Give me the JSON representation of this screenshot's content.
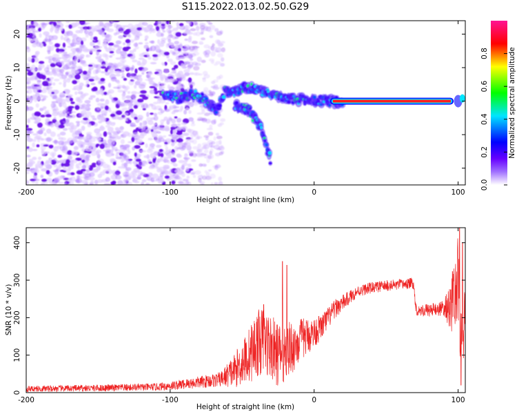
{
  "page": {
    "title": "S115.2022.013.02.50.G29"
  },
  "chart_data": [
    {
      "type": "heatmap",
      "title": "S115.2022.013.02.50.G29",
      "xlabel": "Height of straight line (km)",
      "ylabel": "Frequency (Hz)",
      "xlim": [
        -200,
        105
      ],
      "ylim": [
        -25,
        24
      ],
      "xticks": [
        -200,
        -100,
        0,
        100
      ],
      "yticks": [
        -20,
        -10,
        0,
        10,
        20
      ],
      "colorbar": {
        "label": "Normalized spectral amplitude",
        "range": [
          0,
          1
        ],
        "ticks": [
          "0.0",
          "0.2",
          "0.4",
          "0.6",
          "0.8"
        ],
        "colors": [
          "#ffffff",
          "#8c00ff",
          "#0000ff",
          "#00e5ff",
          "#00ff00",
          "#ffff00",
          "#ff0000",
          "#ff1493"
        ]
      },
      "features": [
        {
          "name": "noise",
          "x_range": [
            -200,
            -85
          ],
          "y_range": [
            -25,
            24
          ],
          "amplitude": 0.15
        },
        {
          "name": "sparse-noise",
          "x_range": [
            -85,
            -63
          ],
          "y_range": [
            -25,
            24
          ],
          "amplitude": 0.08
        },
        {
          "name": "wandering-signal",
          "x": [
            -105,
            -95,
            -85,
            -78,
            -72,
            -68,
            -62,
            -55,
            -48,
            -42,
            -36,
            -30,
            -20,
            -10,
            0,
            10,
            20
          ],
          "y": [
            2,
            1,
            2,
            1,
            -1,
            -3,
            3,
            3,
            4,
            4,
            3,
            2,
            1,
            0.5,
            0,
            0,
            0
          ],
          "amplitude": 0.35
        },
        {
          "name": "descending-branch",
          "x": [
            -55,
            -45,
            -40,
            -35,
            -30
          ],
          "y": [
            -1,
            -3,
            -6,
            -10,
            -18
          ],
          "amplitude": 0.2
        },
        {
          "name": "strong-carrier",
          "x_range": [
            13,
            95
          ],
          "frequency_hz": 0,
          "amplitude": 0.9
        }
      ]
    },
    {
      "type": "line",
      "xlabel": "Height of straight line (km)",
      "ylabel": "SNR (10 * v/v)",
      "xlim": [
        -200,
        105
      ],
      "ylim": [
        0,
        440
      ],
      "xticks": [
        -200,
        -100,
        0,
        100
      ],
      "yticks": [
        0,
        100,
        200,
        300,
        400
      ],
      "color": "#ee2222",
      "series": [
        {
          "name": "SNR",
          "anchors": {
            "x": [
              -200,
              -150,
              -110,
              -100,
              -85,
              -65,
              -55,
              -45,
              -40,
              -35,
              -30,
              -25,
              -20,
              -15,
              -10,
              -5,
              0,
              5,
              10,
              15,
              20,
              25,
              30,
              40,
              50,
              60,
              69,
              70,
              71,
              80,
              90,
              95,
              100,
              102,
              105
            ],
            "y": [
              10,
              12,
              15,
              18,
              25,
              35,
              60,
              100,
              130,
              140,
              120,
              100,
              110,
              120,
              140,
              150,
              160,
              175,
              200,
              225,
              240,
              255,
              270,
              280,
              285,
              288,
              292,
              250,
              220,
              220,
              225,
              230,
              300,
              120,
              200
            ]
          },
          "noise_amplitude": {
            "x": [
              -200,
              -110,
              -85,
              -65,
              -50,
              -40,
              -30,
              -20,
              -10,
              0,
              15,
              30,
              70,
              90,
              100,
              105
            ],
            "y": [
              8,
              10,
              15,
              20,
              60,
              90,
              90,
              80,
              60,
              40,
              25,
              15,
              15,
              20,
              120,
              80
            ]
          },
          "spikes": [
            {
              "x": -22,
              "y": 350
            },
            {
              "x": -19,
              "y": 340
            },
            {
              "x": -35,
              "y": 235
            },
            {
              "x": 101,
              "y": 440
            },
            {
              "x": 103,
              "y": 400
            },
            {
              "x": 102,
              "y": 20
            }
          ]
        }
      ]
    }
  ]
}
